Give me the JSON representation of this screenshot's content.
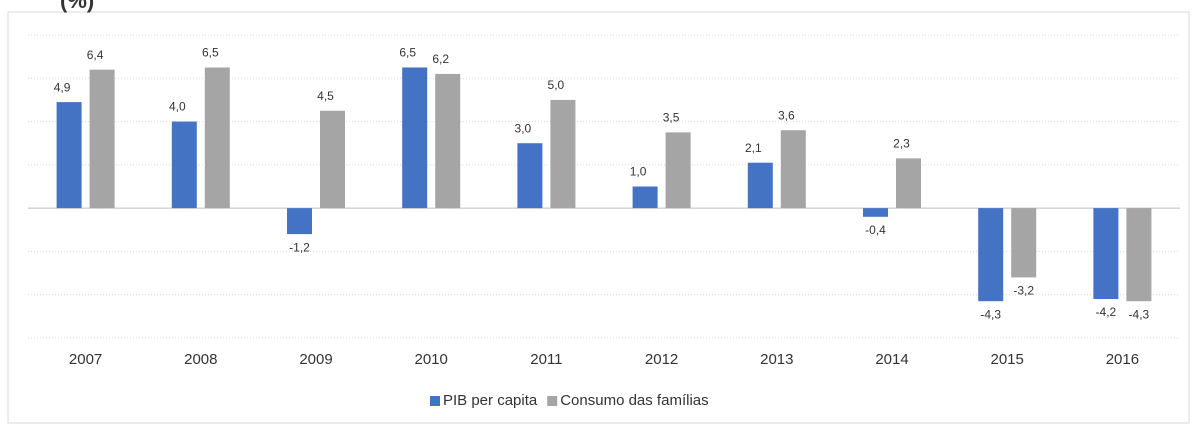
{
  "chart_data": {
    "type": "bar",
    "title": "(%)",
    "categories": [
      "2007",
      "2008",
      "2009",
      "2010",
      "2011",
      "2012",
      "2013",
      "2014",
      "2015",
      "2016"
    ],
    "series": [
      {
        "name": "PIB per capita",
        "color": "#4472c4",
        "values": [
          4.9,
          4.0,
          -1.2,
          6.5,
          3.0,
          1.0,
          2.1,
          -0.4,
          -4.3,
          -4.2
        ],
        "value_labels": [
          "4,9",
          "4,0",
          "-1,2",
          "6,5",
          "3,0",
          "1,0",
          "2,1",
          "-0,4",
          "-4,3",
          "-4,2"
        ]
      },
      {
        "name": "Consumo das famílias",
        "color": "#a5a5a5",
        "values": [
          6.4,
          6.5,
          4.5,
          6.2,
          5.0,
          3.5,
          3.6,
          2.3,
          -3.2,
          -4.3
        ],
        "value_labels": [
          "6,4",
          "6,5",
          "4,5",
          "6,2",
          "5,0",
          "3,5",
          "3,6",
          "2,3",
          "-3,2",
          "-4,3"
        ]
      }
    ],
    "ylim": [
      -6,
      8
    ],
    "yticks": [
      -6,
      -4,
      -2,
      0,
      2,
      4,
      6,
      8
    ],
    "grid": true,
    "legend": "bottom"
  }
}
